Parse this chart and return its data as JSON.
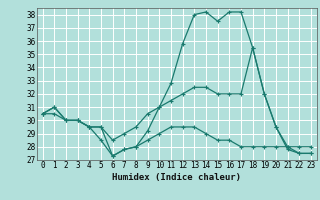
{
  "title": "",
  "xlabel": "Humidex (Indice chaleur)",
  "bg_color": "#b2e0db",
  "grid_color": "#ffffff",
  "line_color": "#1a7a6e",
  "xlim": [
    -0.5,
    23.5
  ],
  "ylim": [
    27,
    38.5
  ],
  "yticks": [
    27,
    28,
    29,
    30,
    31,
    32,
    33,
    34,
    35,
    36,
    37,
    38
  ],
  "xticks": [
    0,
    1,
    2,
    3,
    4,
    5,
    6,
    7,
    8,
    9,
    10,
    11,
    12,
    13,
    14,
    15,
    16,
    17,
    18,
    19,
    20,
    21,
    22,
    23
  ],
  "line1_x": [
    0,
    1,
    2,
    3,
    4,
    5,
    6,
    7,
    8,
    9,
    10,
    11,
    12,
    13,
    14,
    15,
    16,
    17,
    18,
    19,
    20,
    21,
    22,
    23
  ],
  "line1_y": [
    30.5,
    31.0,
    30.0,
    30.0,
    29.5,
    29.5,
    27.3,
    27.8,
    28.0,
    29.2,
    31.0,
    32.8,
    35.8,
    38.0,
    38.2,
    37.5,
    38.2,
    38.2,
    35.5,
    32.0,
    29.5,
    27.8,
    27.5,
    27.5
  ],
  "line2_x": [
    0,
    1,
    2,
    3,
    4,
    5,
    6,
    7,
    8,
    9,
    10,
    11,
    12,
    13,
    14,
    15,
    16,
    17,
    18,
    19,
    20,
    21,
    22,
    23
  ],
  "line2_y": [
    30.5,
    31.0,
    30.0,
    30.0,
    29.5,
    29.5,
    28.5,
    29.0,
    29.5,
    30.5,
    31.0,
    31.5,
    32.0,
    32.5,
    32.5,
    32.0,
    32.0,
    32.0,
    35.5,
    32.0,
    29.5,
    28.0,
    28.0,
    28.0
  ],
  "line3_x": [
    0,
    1,
    2,
    3,
    4,
    5,
    6,
    7,
    8,
    9,
    10,
    11,
    12,
    13,
    14,
    15,
    16,
    17,
    18,
    19,
    20,
    21,
    22,
    23
  ],
  "line3_y": [
    30.5,
    30.5,
    30.0,
    30.0,
    29.5,
    28.5,
    27.3,
    27.8,
    28.0,
    28.5,
    29.0,
    29.5,
    29.5,
    29.5,
    29.0,
    28.5,
    28.5,
    28.0,
    28.0,
    28.0,
    28.0,
    28.0,
    27.5,
    27.5
  ],
  "tick_labelsize": 5.5,
  "xlabel_fontsize": 6.5
}
